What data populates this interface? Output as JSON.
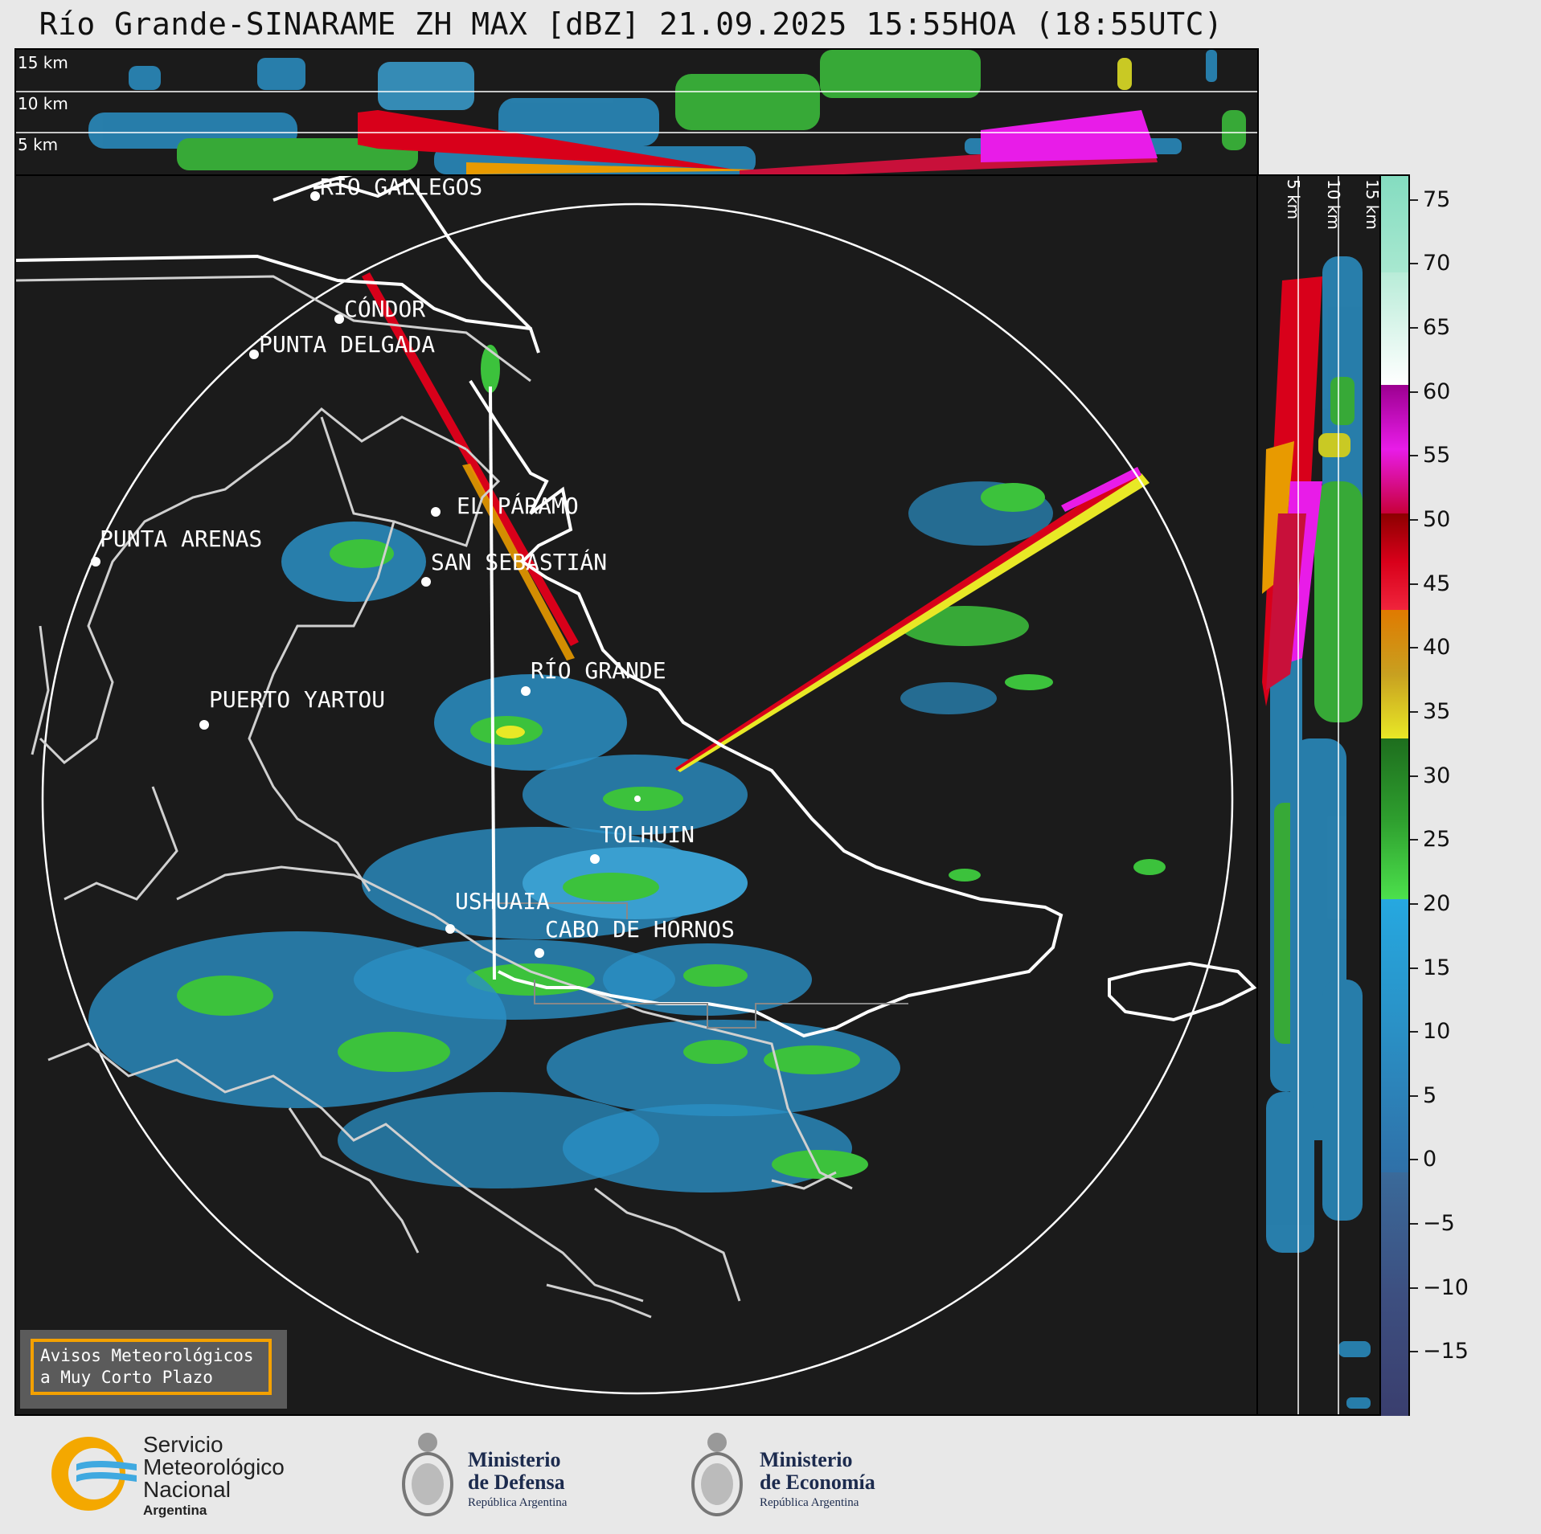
{
  "title": "Río Grande-SINARAME ZH MAX [dBZ] 21.09.2025 15:55HOA (18:55UTC)",
  "top_panel": {
    "heights": [
      "15 km",
      "10 km",
      "5 km"
    ]
  },
  "right_panel": {
    "heights": [
      "5 km",
      "10 km",
      "15 km"
    ]
  },
  "cities": [
    {
      "name": "RÍO GALLEGOS"
    },
    {
      "name": "CÓNDOR"
    },
    {
      "name": "PUNTA DELGADA"
    },
    {
      "name": "EL PÁRAMO"
    },
    {
      "name": "PUNTA ARENAS"
    },
    {
      "name": "SAN SEBASTIÁN"
    },
    {
      "name": "RÍO GRANDE"
    },
    {
      "name": "PUERTO YARTOU"
    },
    {
      "name": "TOLHUIN"
    },
    {
      "name": "USHUAIA"
    },
    {
      "name": "CABO DE HORNOS"
    }
  ],
  "colorbar": {
    "unit": "dBZ",
    "ticks": [
      "75",
      "70",
      "65",
      "60",
      "55",
      "50",
      "45",
      "40",
      "35",
      "30",
      "25",
      "20",
      "15",
      "10",
      "5",
      "0",
      "−5",
      "−10",
      "−15"
    ],
    "range": [
      -20,
      77
    ]
  },
  "warning": {
    "line1": "Avisos Meteorológicos",
    "line2": "a Muy Corto Plazo"
  },
  "footer": {
    "smn": {
      "l1": "Servicio",
      "l2": "Meteorológico",
      "l3": "Nacional",
      "l4": "Argentina"
    },
    "defensa": {
      "l1": "Ministerio",
      "l2": "de Defensa",
      "sub": "República Argentina"
    },
    "economia": {
      "l1": "Ministerio",
      "l2": "de Economía",
      "sub": "República Argentina"
    }
  },
  "colors": {
    "background": "#1b1b1b",
    "ring": "#ffffff",
    "coast": "#d0d0d0",
    "warning_border": "#f4a100"
  }
}
